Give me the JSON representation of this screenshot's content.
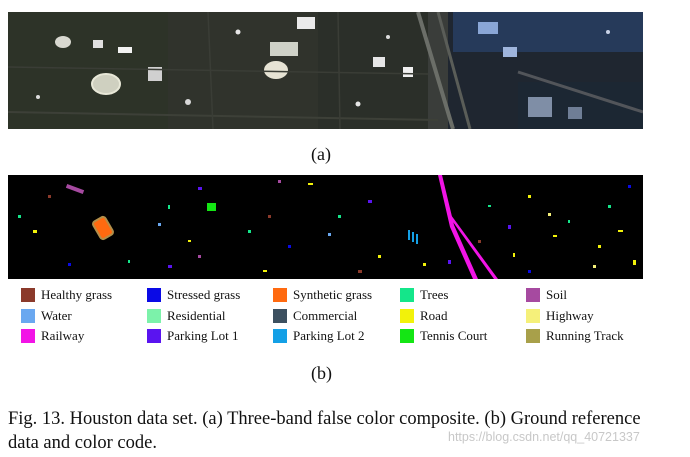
{
  "figure": {
    "label_a": "(a)",
    "label_b": "(b)",
    "legend": [
      {
        "label": "Healthy grass",
        "color": "#8b3a2b"
      },
      {
        "label": "Stressed grass",
        "color": "#0a0ae6"
      },
      {
        "label": "Synthetic grass",
        "color": "#ff6a10"
      },
      {
        "label": "Trees",
        "color": "#14e68a"
      },
      {
        "label": "Soil",
        "color": "#a64aa0"
      },
      {
        "label": "Water",
        "color": "#6aa8f0"
      },
      {
        "label": "Residential",
        "color": "#7cf2aa"
      },
      {
        "label": "Commercial",
        "color": "#3c5060"
      },
      {
        "label": "Road",
        "color": "#f2f20a"
      },
      {
        "label": "Highway",
        "color": "#f5f07a"
      },
      {
        "label": "Railway",
        "color": "#f214e6"
      },
      {
        "label": "Parking Lot 1",
        "color": "#5a14f0"
      },
      {
        "label": "Parking Lot 2",
        "color": "#14a0e6"
      },
      {
        "label": "Tennis Court",
        "color": "#14e614"
      },
      {
        "label": "Running Track",
        "color": "#a8a04a"
      }
    ],
    "caption": "Fig. 13.   Houston data set. (a) Three-band false color composite. (b) Ground reference data and color code."
  },
  "watermark": "https://blog.csdn.net/qq_40721337"
}
